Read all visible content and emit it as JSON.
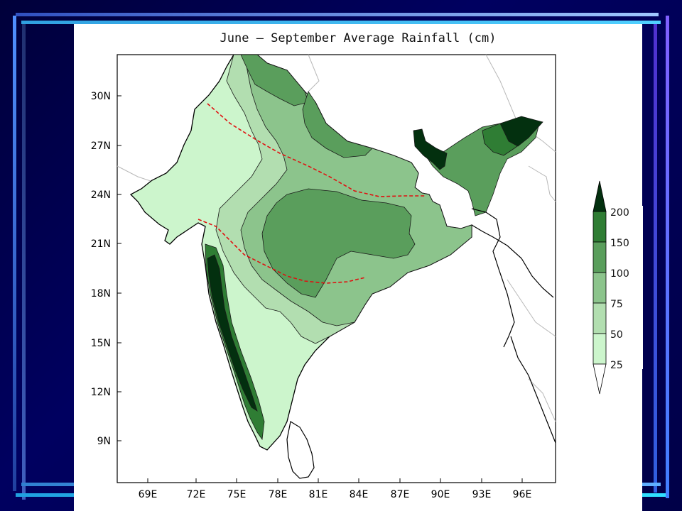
{
  "title": "June — September Average Rainfall (cm)",
  "map": {
    "lat_ticks": [
      "30N",
      "27N",
      "24N",
      "21N",
      "18N",
      "15N",
      "12N",
      "9N"
    ],
    "lon_ticks": [
      "69E",
      "72E",
      "75E",
      "78E",
      "81E",
      "84E",
      "87E",
      "90E",
      "93E",
      "96E"
    ]
  },
  "legend": {
    "labels": [
      "200",
      "150",
      "100",
      "75",
      "50",
      "25"
    ],
    "colors": [
      "#03300f",
      "#2f7d34",
      "#5a9e5c",
      "#8cc48c",
      "#b2deb0",
      "#ccf5cc",
      "#ffffff"
    ]
  },
  "colors": {
    "contour_line": "#1a1a1a",
    "boundary_line": "#e01010",
    "background": "#000050"
  }
}
